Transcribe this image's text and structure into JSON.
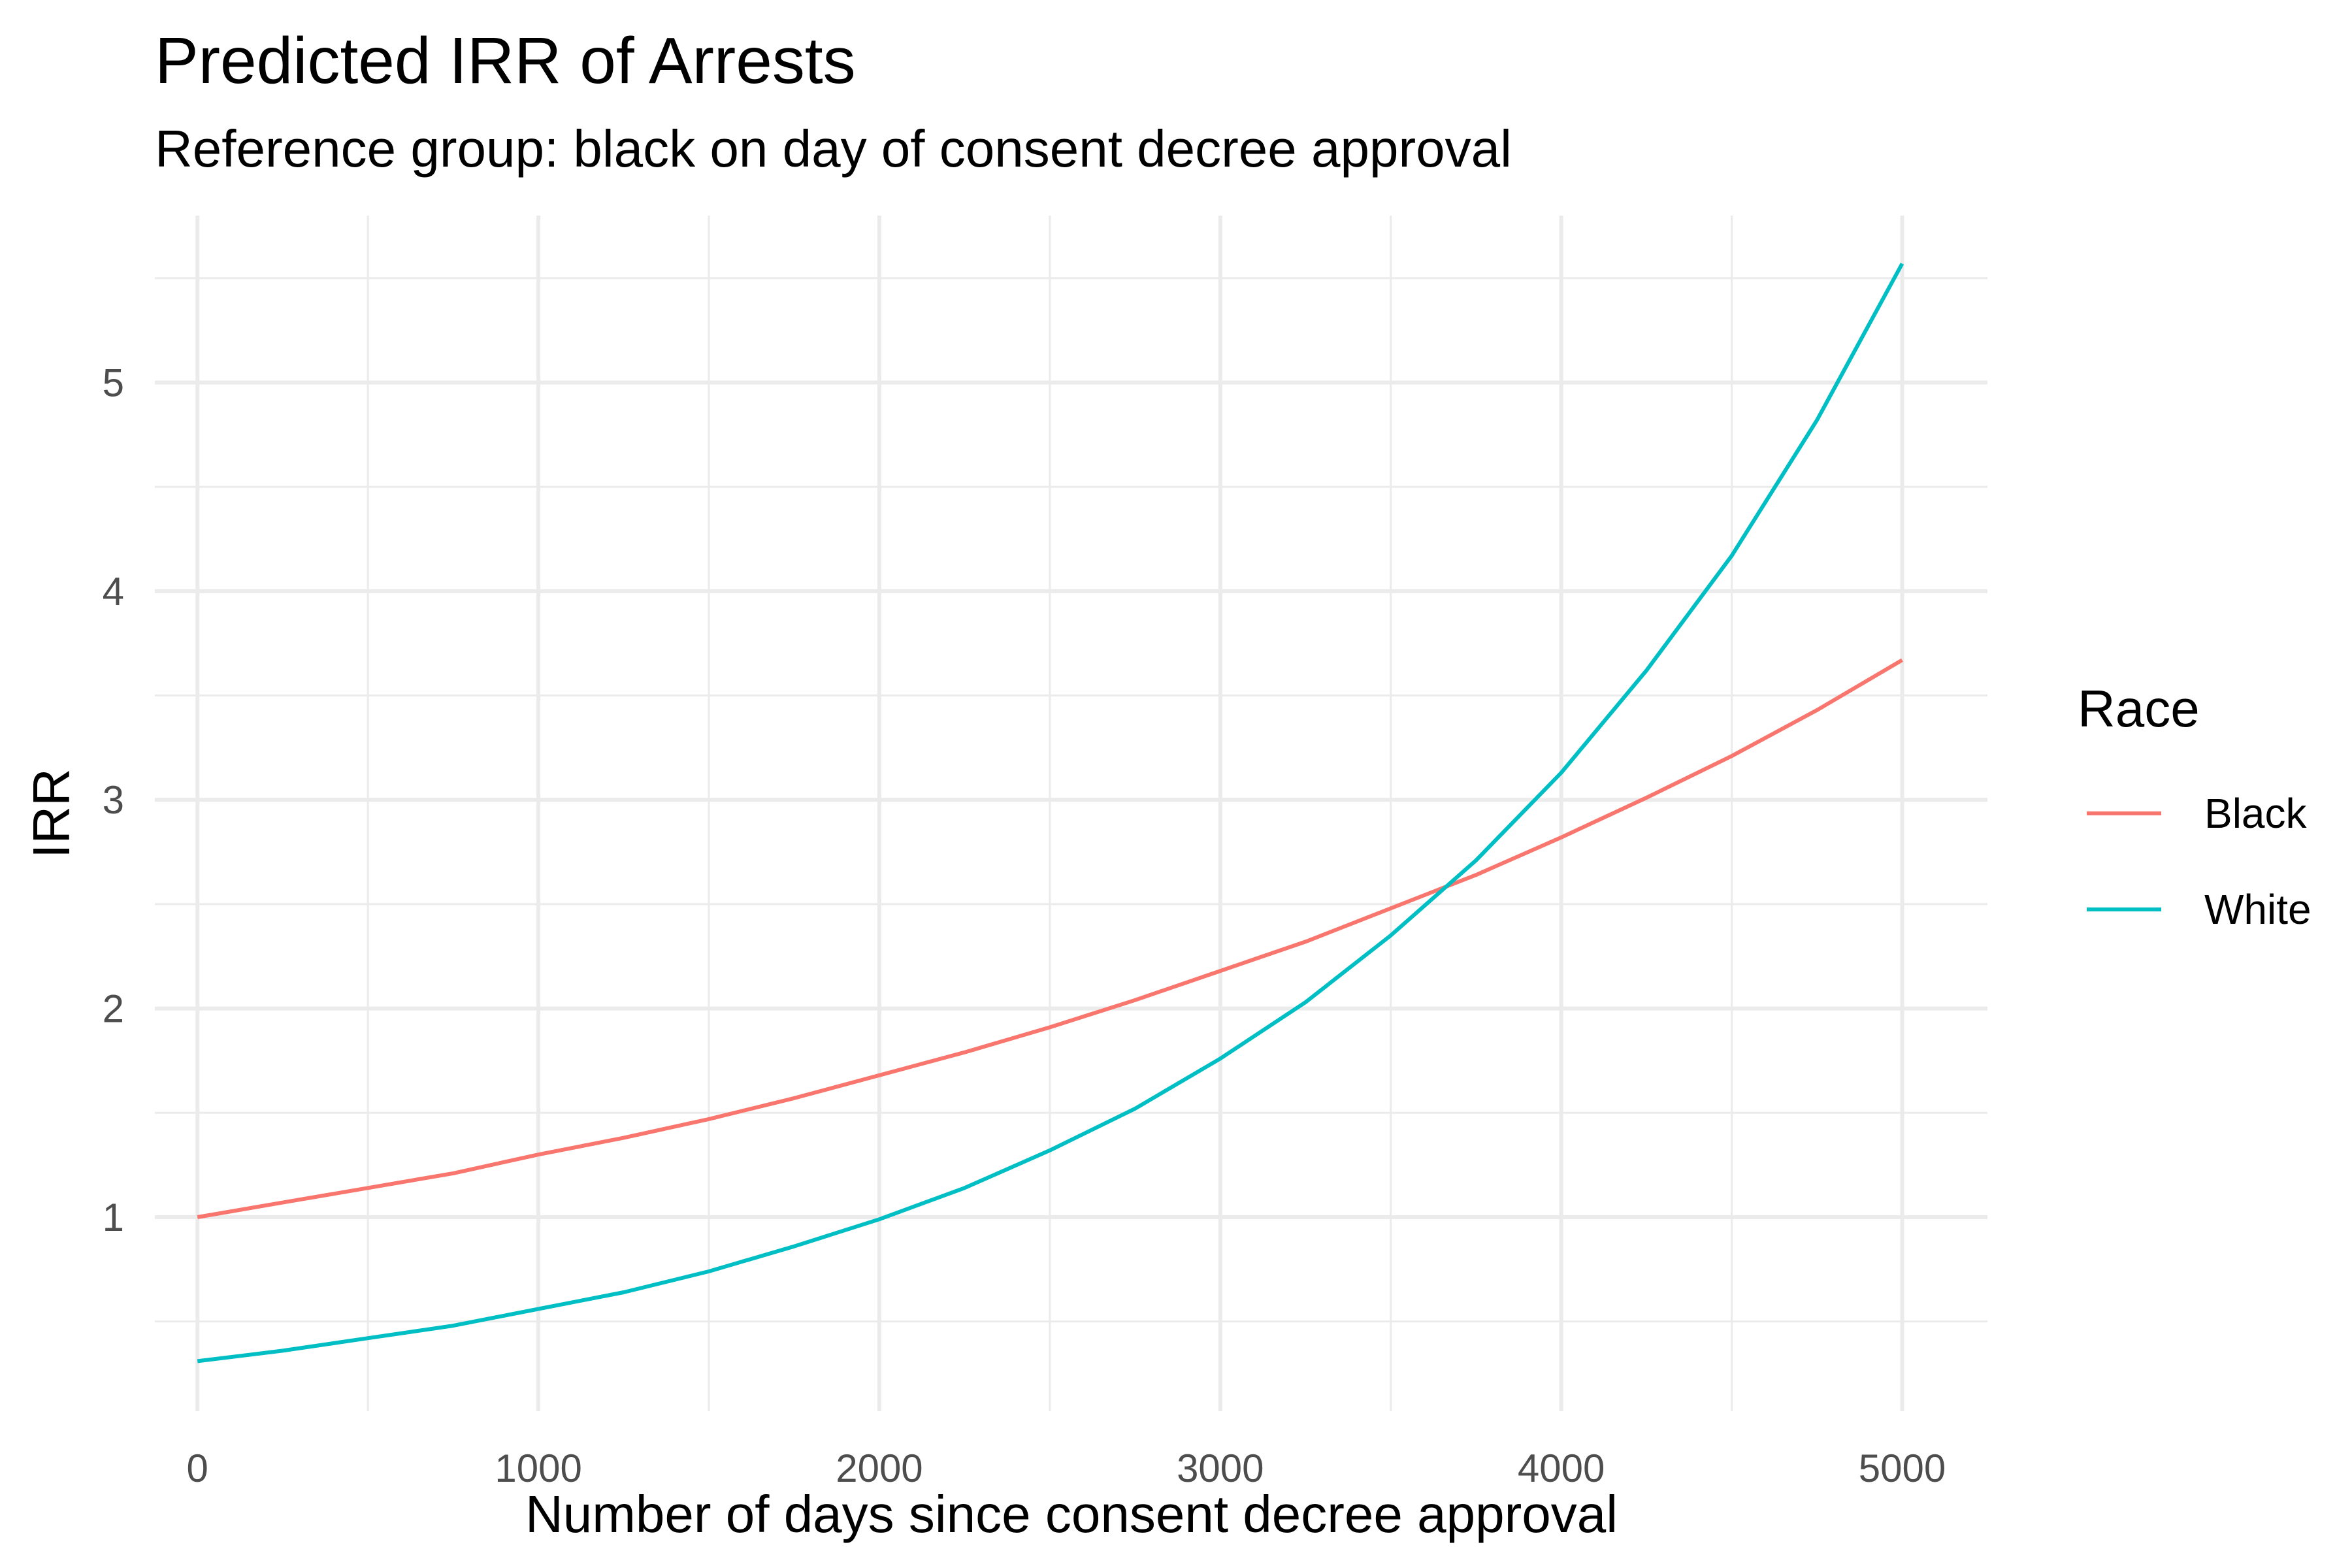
{
  "chart_data": {
    "type": "line",
    "title": "Predicted IRR of Arrests",
    "subtitle": "Reference group: black on day of consent decree approval",
    "xlabel": "Number of days since consent decree approval",
    "ylabel": "IRR",
    "xlim": [
      -125,
      5250
    ],
    "ylim": [
      0.07,
      5.8
    ],
    "xticks": [
      0,
      1000,
      2000,
      3000,
      4000,
      5000
    ],
    "xtick_labels": [
      "0",
      "1000",
      "2000",
      "3000",
      "4000",
      "5000"
    ],
    "yticks": [
      1,
      2,
      3,
      4,
      5
    ],
    "ytick_labels": [
      "1",
      "2",
      "3",
      "4",
      "5"
    ],
    "grid": true,
    "legend": {
      "title": "Race",
      "position": "right"
    },
    "x": [
      0,
      250,
      500,
      750,
      1000,
      1250,
      1500,
      1750,
      2000,
      2250,
      2500,
      2750,
      3000,
      3250,
      3500,
      3750,
      4000,
      4250,
      4500,
      4750,
      5000
    ],
    "series": [
      {
        "name": "Black",
        "color": "#F8766D",
        "values": [
          1.0,
          1.07,
          1.14,
          1.21,
          1.3,
          1.38,
          1.47,
          1.57,
          1.68,
          1.79,
          1.91,
          2.04,
          2.18,
          2.32,
          2.48,
          2.64,
          2.82,
          3.01,
          3.21,
          3.43,
          3.67
        ]
      },
      {
        "name": "White",
        "color": "#00BFC4",
        "values": [
          0.31,
          0.36,
          0.42,
          0.48,
          0.56,
          0.64,
          0.74,
          0.86,
          0.99,
          1.14,
          1.32,
          1.52,
          1.76,
          2.03,
          2.35,
          2.71,
          3.13,
          3.62,
          4.17,
          4.82,
          5.57
        ]
      }
    ]
  }
}
